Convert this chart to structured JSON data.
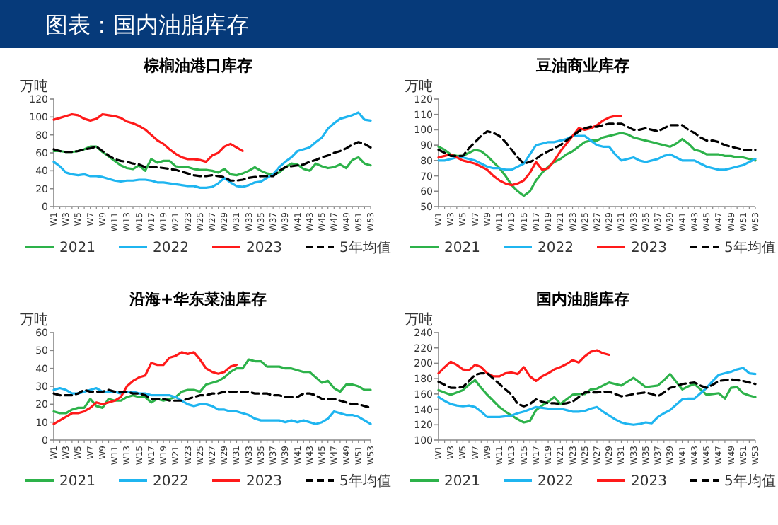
{
  "chart_data": [
    {
      "type": "line",
      "title": "棕榈油港口库存",
      "ylabel": "万吨",
      "annotations": [
        "图表：国内油脂库存"
      ],
      "categories": [
        "W1",
        null,
        "W3",
        null,
        "W5",
        null,
        "W7",
        null,
        "W9",
        null,
        "W11",
        null,
        "W13",
        null,
        "W15",
        null,
        "W17",
        null,
        "W19",
        null,
        "W21",
        null,
        "W23",
        null,
        "W25",
        null,
        "W27",
        null,
        "W29",
        null,
        "W31",
        null,
        "W33",
        null,
        "W35",
        null,
        "W37",
        null,
        "W39",
        null,
        "W41",
        null,
        "W43",
        null,
        "W45",
        null,
        "W47",
        null,
        "W49",
        null,
        "W51",
        null,
        "W53"
      ],
      "series": [
        {
          "name": "2021",
          "color": "#2db24a",
          "values": [
            62,
            62,
            61,
            61,
            62,
            64,
            67,
            67,
            61,
            56,
            51,
            46,
            43,
            42,
            46,
            40,
            53,
            49,
            51,
            51,
            45,
            44,
            44,
            42,
            41,
            41,
            40,
            38,
            42,
            36,
            35,
            37,
            40,
            44,
            40,
            37,
            36,
            38,
            44,
            48,
            47,
            42,
            40,
            48,
            45,
            43,
            44,
            47,
            43,
            52,
            55,
            48,
            46
          ]
        },
        {
          "name": "2022",
          "color": "#1fb5f0",
          "values": [
            50,
            45,
            38,
            36,
            35,
            36,
            34,
            34,
            33,
            31,
            29,
            28,
            29,
            29,
            30,
            30,
            29,
            27,
            27,
            26,
            25,
            24,
            23,
            23,
            21,
            21,
            22,
            26,
            32,
            27,
            23,
            22,
            24,
            27,
            28,
            32,
            36,
            44,
            50,
            55,
            62,
            64,
            66,
            72,
            77,
            87,
            93,
            98,
            100,
            102,
            105,
            97,
            96
          ]
        },
        {
          "name": "2023",
          "color": "#ff1a1a",
          "values": [
            97,
            99,
            101,
            103,
            102,
            98,
            96,
            98,
            103,
            102,
            101,
            99,
            95,
            93,
            90,
            86,
            80,
            74,
            70,
            64,
            59,
            55,
            53,
            53,
            52,
            50,
            57,
            60,
            67,
            70,
            66,
            62,
            null,
            null,
            null,
            null,
            null,
            null,
            null,
            null,
            null,
            null,
            null,
            null,
            null,
            null,
            null,
            null,
            null,
            null,
            null,
            null,
            null
          ]
        },
        {
          "name": "5年均值",
          "color": "#000000",
          "line_style": "dashed",
          "values": [
            64,
            62,
            61,
            61,
            62,
            64,
            65,
            67,
            62,
            57,
            53,
            51,
            50,
            48,
            47,
            44,
            44,
            44,
            43,
            42,
            41,
            39,
            37,
            35,
            34,
            34,
            35,
            34,
            33,
            29,
            29,
            30,
            32,
            33,
            34,
            34,
            34,
            40,
            44,
            45,
            46,
            47,
            50,
            52,
            55,
            57,
            60,
            62,
            65,
            69,
            72,
            70,
            66
          ]
        }
      ],
      "ylim": [
        0,
        120
      ],
      "yticks": [
        0,
        20,
        40,
        60,
        80,
        100,
        120
      ],
      "legend": "bottom"
    },
    {
      "type": "line",
      "title": "豆油商业库存",
      "ylabel": "万吨",
      "categories": [
        "W1",
        null,
        "W3",
        null,
        "W5",
        null,
        "W7",
        null,
        "W9",
        null,
        "W11",
        null,
        "W13",
        null,
        "W15",
        null,
        "W17",
        null,
        "W19",
        null,
        "W21",
        null,
        "W23",
        null,
        "W25",
        null,
        "W27",
        null,
        "W29",
        null,
        "W31",
        null,
        "W33",
        null,
        "W35",
        null,
        "W37",
        null,
        "W39",
        null,
        "W41",
        null,
        "W43",
        null,
        "W45",
        null,
        "W47",
        null,
        "W49",
        null,
        "W51",
        null,
        "W53"
      ],
      "series": [
        {
          "name": "2021",
          "color": "#2db24a",
          "values": [
            89,
            87,
            84,
            83,
            83,
            85,
            87,
            86,
            83,
            79,
            75,
            70,
            64,
            60,
            57,
            60,
            67,
            72,
            76,
            79,
            81,
            84,
            86,
            89,
            92,
            93,
            93,
            95,
            96,
            97,
            98,
            97,
            95,
            94,
            93,
            92,
            91,
            90,
            89,
            91,
            94,
            91,
            87,
            86,
            84,
            84,
            84,
            83,
            83,
            82,
            82,
            81,
            80
          ]
        },
        {
          "name": "2022",
          "color": "#1fb5f0",
          "values": [
            80,
            80,
            81,
            82,
            82,
            81,
            80,
            78,
            76,
            75,
            75,
            74,
            74,
            76,
            78,
            84,
            90,
            91,
            92,
            92,
            93,
            94,
            96,
            96,
            96,
            93,
            90,
            89,
            89,
            84,
            80,
            81,
            82,
            80,
            79,
            80,
            81,
            83,
            84,
            82,
            80,
            80,
            80,
            78,
            76,
            75,
            74,
            74,
            75,
            76,
            77,
            79,
            81
          ]
        },
        {
          "name": "2023",
          "color": "#ff1a1a",
          "values": [
            82,
            83,
            84,
            82,
            80,
            79,
            78,
            76,
            74,
            70,
            67,
            65,
            64,
            65,
            67,
            72,
            79,
            74,
            75,
            80,
            86,
            91,
            96,
            101,
            100,
            101,
            103,
            106,
            108,
            109,
            109,
            null,
            null,
            null,
            null,
            null,
            null,
            null,
            null,
            null,
            null,
            null,
            null,
            null,
            null,
            null,
            null,
            null,
            null,
            null,
            null,
            null,
            null
          ]
        },
        {
          "name": "5年均值",
          "color": "#000000",
          "line_style": "dashed",
          "values": [
            87,
            85,
            83,
            83,
            83,
            88,
            92,
            96,
            99,
            98,
            96,
            92,
            87,
            82,
            78,
            79,
            81,
            84,
            86,
            88,
            90,
            93,
            96,
            99,
            101,
            102,
            102,
            103,
            104,
            104,
            104,
            102,
            100,
            100,
            101,
            100,
            99,
            101,
            103,
            103,
            103,
            100,
            98,
            95,
            93,
            93,
            92,
            90,
            89,
            88,
            87,
            87,
            87
          ]
        }
      ],
      "ylim": [
        50,
        120
      ],
      "yticks": [
        50,
        60,
        70,
        80,
        90,
        100,
        110,
        120
      ],
      "legend": "bottom"
    },
    {
      "type": "line",
      "title": "沿海+华东菜油库存",
      "ylabel": "万吨",
      "categories": [
        "W1",
        null,
        "W3",
        null,
        "W5",
        null,
        "W7",
        null,
        "W9",
        null,
        "W11",
        null,
        "W13",
        null,
        "W15",
        null,
        "W17",
        null,
        "W19",
        null,
        "W21",
        null,
        "W23",
        null,
        "W25",
        null,
        "W27",
        null,
        "W29",
        null,
        "W31",
        null,
        "W33",
        null,
        "W35",
        null,
        "W37",
        null,
        "W39",
        null,
        "W41",
        null,
        "W43",
        null,
        "W45",
        null,
        "W47",
        null,
        "W49",
        null,
        "W51",
        null,
        "W53"
      ],
      "series": [
        {
          "name": "2021",
          "color": "#2db24a",
          "values": [
            16,
            15,
            15,
            17,
            18,
            18,
            23,
            19,
            18,
            23,
            22,
            22,
            24,
            25,
            24,
            24,
            21,
            23,
            22,
            23,
            24,
            27,
            28,
            28,
            27,
            31,
            32,
            33,
            35,
            38,
            40,
            40,
            45,
            44,
            44,
            41,
            41,
            41,
            40,
            40,
            39,
            38,
            38,
            35,
            32,
            33,
            29,
            27,
            31,
            31,
            30,
            28,
            28
          ]
        },
        {
          "name": "2022",
          "color": "#1fb5f0",
          "values": [
            28,
            29,
            28,
            26,
            26,
            27,
            28,
            29,
            27,
            27,
            27,
            26,
            27,
            27,
            26,
            26,
            25,
            25,
            25,
            25,
            24,
            22,
            20,
            19,
            20,
            20,
            19,
            17,
            17,
            16,
            16,
            15,
            14,
            12,
            11,
            11,
            11,
            11,
            10,
            11,
            10,
            11,
            10,
            9,
            10,
            12,
            16,
            15,
            14,
            14,
            13,
            11,
            9
          ]
        },
        {
          "name": "2023",
          "color": "#ff1a1a",
          "values": [
            9,
            11,
            13,
            15,
            15,
            16,
            18,
            21,
            20,
            21,
            22,
            24,
            30,
            33,
            35,
            36,
            43,
            42,
            42,
            46,
            47,
            49,
            48,
            49,
            45,
            40,
            38,
            37,
            38,
            41,
            42,
            null,
            null,
            null,
            null,
            null,
            null,
            null,
            null,
            null,
            null,
            null,
            null,
            null,
            null,
            null,
            null,
            null,
            null,
            null,
            null,
            null,
            null
          ]
        },
        {
          "name": "5年均值",
          "color": "#000000",
          "line_style": "dashed",
          "values": [
            26,
            25,
            25,
            25,
            26,
            28,
            27,
            27,
            27,
            28,
            27,
            27,
            27,
            26,
            26,
            25,
            23,
            23,
            23,
            22,
            22,
            22,
            23,
            24,
            25,
            25,
            26,
            26,
            27,
            27,
            27,
            27,
            27,
            26,
            26,
            26,
            25,
            25,
            24,
            24,
            24,
            26,
            26,
            25,
            23,
            23,
            23,
            22,
            21,
            20,
            20,
            19,
            18
          ]
        }
      ],
      "ylim": [
        0,
        60
      ],
      "yticks": [
        0,
        10,
        20,
        30,
        40,
        50,
        60
      ],
      "legend": "bottom"
    },
    {
      "type": "line",
      "title": "国内油脂库存",
      "ylabel": "万吨",
      "categories": [
        "W1",
        null,
        "W3",
        null,
        "W5",
        null,
        "W7",
        null,
        "W9",
        null,
        "W11",
        null,
        "W13",
        null,
        "W15",
        null,
        "W17",
        null,
        "W19",
        null,
        "W21",
        null,
        "W23",
        null,
        "W25",
        null,
        "W27",
        null,
        "W29",
        null,
        "W31",
        null,
        "W33",
        null,
        "W35",
        null,
        "W37",
        null,
        "W39",
        null,
        "W41",
        null,
        "W43",
        null,
        "W45",
        null,
        "W47",
        null,
        "W49",
        null,
        "W51",
        null,
        "W53"
      ],
      "series": [
        {
          "name": "2021",
          "color": "#2db24a",
          "values": [
            165,
            162,
            159,
            162,
            165,
            172,
            178,
            168,
            159,
            151,
            143,
            137,
            132,
            127,
            123,
            125,
            139,
            145,
            150,
            156,
            147,
            153,
            159,
            160,
            160,
            166,
            167,
            171,
            175,
            173,
            171,
            176,
            181,
            175,
            169,
            170,
            171,
            178,
            186,
            176,
            166,
            170,
            173,
            166,
            159,
            160,
            161,
            154,
            168,
            169,
            161,
            158,
            156
          ]
        },
        {
          "name": "2022",
          "color": "#1fb5f0",
          "values": [
            156,
            151,
            147,
            145,
            144,
            145,
            143,
            137,
            130,
            130,
            130,
            131,
            132,
            135,
            137,
            140,
            143,
            142,
            141,
            141,
            141,
            139,
            137,
            137,
            138,
            141,
            143,
            137,
            132,
            127,
            123,
            121,
            120,
            121,
            123,
            122,
            130,
            135,
            139,
            146,
            153,
            154,
            154,
            161,
            168,
            177,
            185,
            187,
            189,
            192,
            194,
            187,
            186
          ]
        },
        {
          "name": "2023",
          "color": "#ff1a1a",
          "values": [
            187,
            195,
            202,
            198,
            192,
            191,
            198,
            195,
            187,
            183,
            183,
            187,
            188,
            186,
            195,
            183,
            177,
            183,
            187,
            192,
            195,
            199,
            204,
            201,
            209,
            215,
            217,
            213,
            211,
            null,
            null,
            null,
            null,
            null,
            null,
            null,
            null,
            null,
            null,
            null,
            null,
            null,
            null,
            null,
            null,
            null,
            null,
            null,
            null,
            null,
            null,
            null,
            null
          ]
        },
        {
          "name": "5年均值",
          "color": "#000000",
          "line_style": "dashed",
          "values": [
            176,
            172,
            168,
            168,
            169,
            177,
            185,
            187,
            187,
            180,
            173,
            166,
            159,
            147,
            144,
            147,
            153,
            150,
            148,
            148,
            147,
            148,
            150,
            156,
            162,
            162,
            162,
            163,
            163,
            160,
            157,
            158,
            160,
            161,
            162,
            160,
            157,
            162,
            168,
            170,
            173,
            174,
            175,
            171,
            168,
            172,
            177,
            178,
            179,
            178,
            177,
            175,
            173
          ]
        }
      ],
      "ylim": [
        100,
        240
      ],
      "yticks": [
        100,
        120,
        140,
        160,
        180,
        200,
        220,
        240
      ],
      "legend": "bottom"
    }
  ]
}
